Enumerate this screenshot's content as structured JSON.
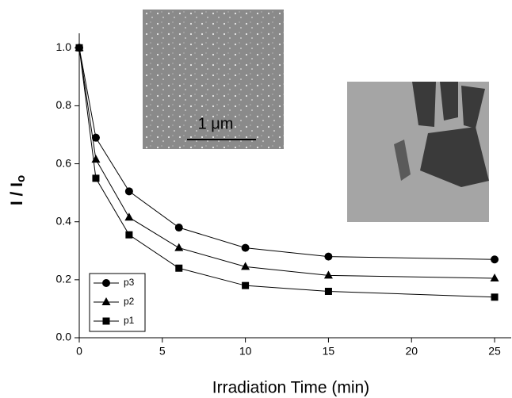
{
  "chart_data": {
    "type": "line",
    "x_label": "Irradiation Time (min)",
    "y_label": "I / I",
    "y_label_subscript": "o",
    "inset_scale_bar": "1 μm",
    "x": [
      0,
      1,
      3,
      6,
      10,
      15,
      25
    ],
    "series": [
      {
        "name": "p3",
        "color": "#000000",
        "marker": "circle",
        "values": [
          1.0,
          0.69,
          0.505,
          0.38,
          0.31,
          0.28,
          0.27
        ]
      },
      {
        "name": "p2",
        "color": "#000000",
        "marker": "triangle",
        "values": [
          1.0,
          0.615,
          0.415,
          0.31,
          0.245,
          0.215,
          0.205
        ]
      },
      {
        "name": "p1",
        "color": "#000000",
        "marker": "square",
        "values": [
          1.0,
          0.55,
          0.355,
          0.24,
          0.18,
          0.16,
          0.14
        ]
      }
    ],
    "xlim": [
      0,
      26
    ],
    "xticks": [
      0,
      5,
      10,
      15,
      20,
      25
    ],
    "ylim": [
      0,
      1.05
    ],
    "yticks": [
      {
        "value": 0,
        "label": "0.0"
      },
      0.2,
      0.4,
      0.6,
      0.8,
      {
        "value": 1,
        "label": "1.0"
      }
    ],
    "grid": false,
    "legend": "lower left"
  }
}
